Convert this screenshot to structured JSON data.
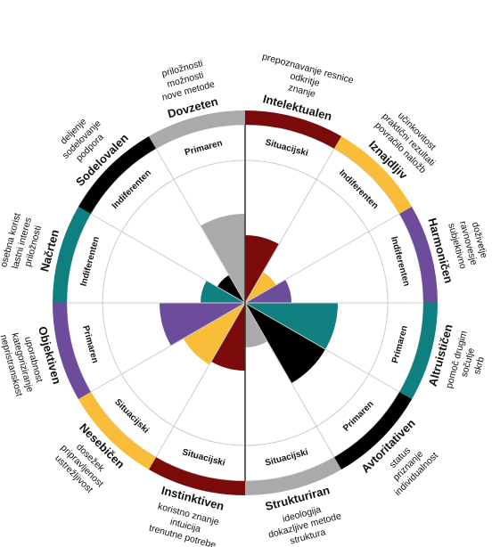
{
  "chart_data": {
    "type": "polar_area",
    "categories": [
      "Intelektualen",
      "Iznajdljiv",
      "Harmoničen",
      "Altruističen",
      "Avtoritativen",
      "Strukturiran",
      "Instinktiven",
      "Nesebičen",
      "Objektiven",
      "Načrten",
      "Sodelovalen",
      "Dovzeten"
    ],
    "values": [
      38,
      20,
      26,
      52,
      52,
      25,
      38,
      40,
      48,
      25,
      18,
      50
    ],
    "colors": [
      "#7b0a0a",
      "#f9bd3a",
      "#6e4c9c",
      "#0f7f7f",
      "#000000",
      "#aaaaaa",
      "#7b0a0a",
      "#f9bd3a",
      "#6e4c9c",
      "#0f7f7f",
      "#000000",
      "#aaaaaa"
    ],
    "rlim": [
      0,
      100
    ],
    "levels": [
      "Situacijski",
      "Indiferenten",
      "Indiferenten",
      "Primaren",
      "Primaren",
      "Situacijski",
      "Situacijski",
      "Situacijski",
      "Primaren",
      "Indiferenten",
      "Indiferenten",
      "Primaren"
    ],
    "descriptions": [
      [
        "prepoznavanje resnice",
        "odkritje",
        "znanje"
      ],
      [
        "učinkovitost",
        "praktični rezultati",
        "povračilo naložb"
      ],
      [
        "doživetje",
        "ravnovesje",
        "subjektivno"
      ],
      [
        "pomoč drugim",
        "sočutje",
        "skrb"
      ],
      [
        "status",
        "priznanje",
        "individualnost"
      ],
      [
        "ideologija",
        "dokazljive metode",
        "struktura"
      ],
      [
        "koristno znanje",
        "intuicija",
        "trenutne potrebe"
      ],
      [
        "dosežek",
        "pripravljenost",
        "ustrežljivost"
      ],
      [
        "uporabnost",
        "kategoriziranje",
        "nepristranskost"
      ],
      [
        "osebna korist",
        "lastni interes",
        "priložnosti"
      ],
      [
        "deljenje",
        "sodelovanje",
        "podpora"
      ],
      [
        "priložnosti",
        "možnosti",
        "nove metode"
      ]
    ]
  }
}
